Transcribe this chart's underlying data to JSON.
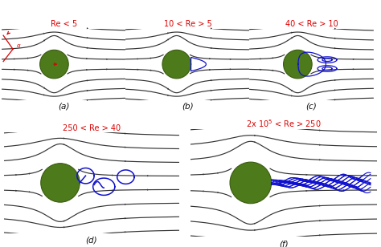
{
  "panels": [
    {
      "label": "(a)",
      "re_text": "Re < 5",
      "re_color": "#dd0000"
    },
    {
      "label": "(b)",
      "re_text": "10 < Re > 5",
      "re_color": "#dd0000"
    },
    {
      "label": "(c)",
      "re_text": "40 < Re > 10",
      "re_color": "#dd0000"
    },
    {
      "label": "(d)",
      "re_text": "250 < Re > 40",
      "re_color": "#dd0000"
    },
    {
      "label": "(f)",
      "re_text": "2x 10$^5$ < Re > 250",
      "re_color": "#dd0000"
    }
  ],
  "cylinder_color": "#4d7a1a",
  "cylinder_edge": "#3a5a10",
  "streamline_color": "#333333",
  "wake_color": "#1111cc",
  "arrow_color": "#dd0000",
  "background_color": "#ffffff",
  "n_streamlines": 8,
  "xlim": [
    -2.0,
    2.5
  ],
  "ylim": [
    -1.3,
    1.3
  ]
}
